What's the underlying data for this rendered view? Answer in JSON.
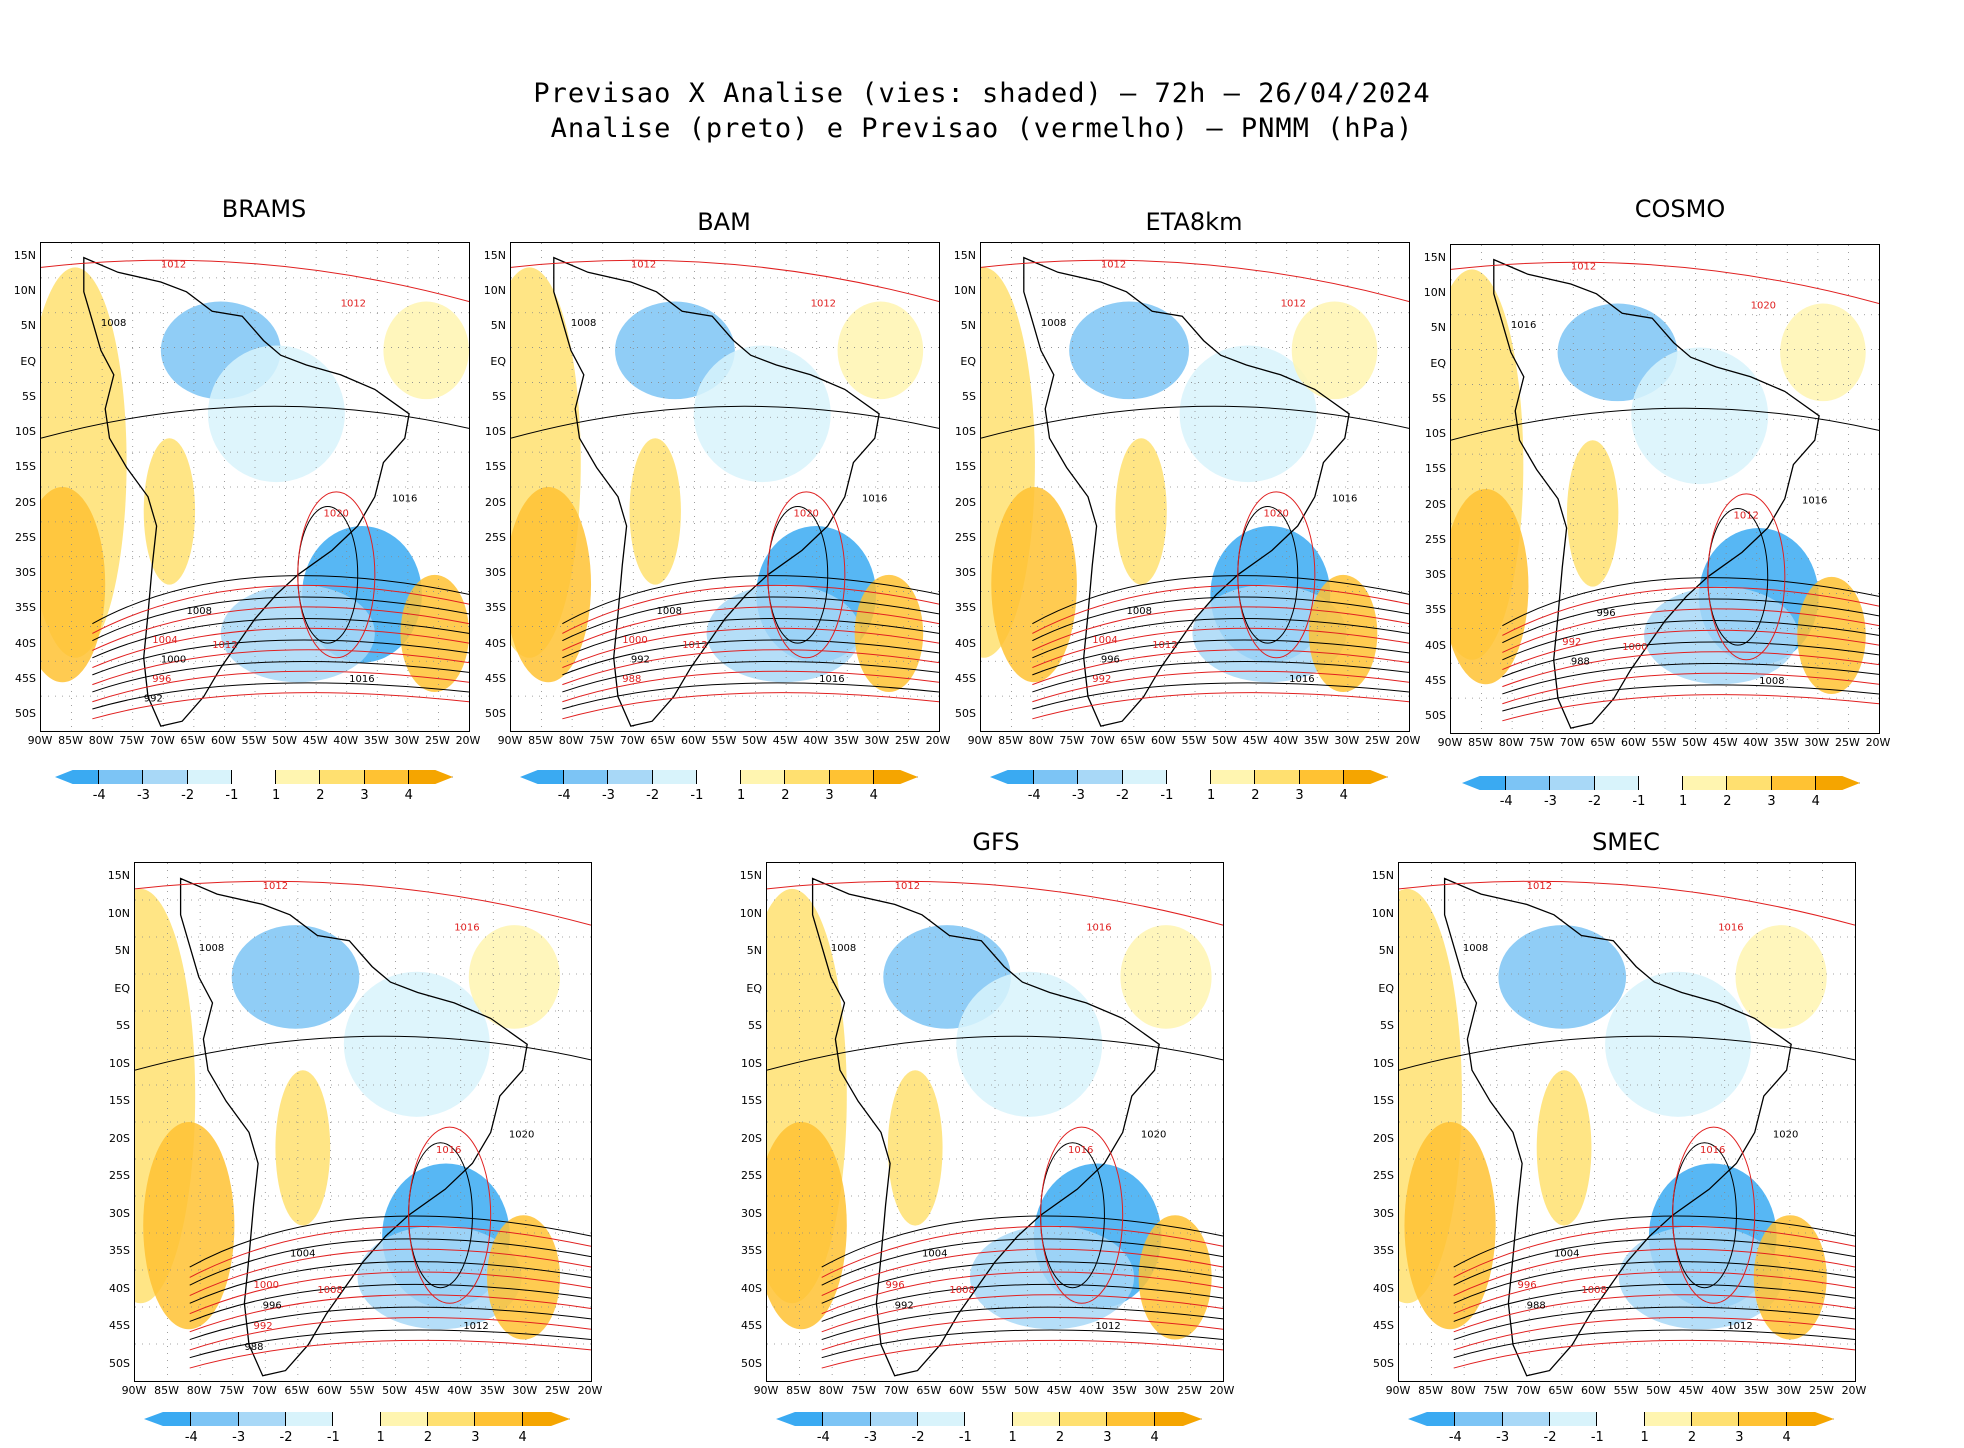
{
  "title": {
    "line1": "Previsao X Analise (vies: shaded) – 72h – 26/04/2024",
    "line2": "Analise (preto) e Previsao (vermelho) – PNMM (hPa)"
  },
  "lat_labels": [
    "15N",
    "10N",
    "5N",
    "EQ",
    "5S",
    "10S",
    "15S",
    "20S",
    "25S",
    "30S",
    "35S",
    "40S",
    "45S",
    "50S"
  ],
  "lon_labels": [
    "90W",
    "85W",
    "80W",
    "75W",
    "70W",
    "65W",
    "60W",
    "55W",
    "50W",
    "45W",
    "40W",
    "35W",
    "30W",
    "25W",
    "20W"
  ],
  "colorbar": {
    "labels": [
      "-4",
      "-3",
      "-2",
      "-1",
      "1",
      "2",
      "3",
      "4"
    ],
    "colors": [
      "#3aaaf2",
      "#7cc4f5",
      "#a8d8f7",
      "#d8f3fb",
      "#ffffff",
      "#fff5b0",
      "#ffe070",
      "#ffc233",
      "#f5a500"
    ]
  },
  "colors": {
    "analysis": "#000000",
    "forecast": "#e02020",
    "grid": "#888888"
  },
  "panels": [
    {
      "name": "BRAMS",
      "isobars": [
        "1012",
        "1008",
        "1012",
        "1016",
        "1020",
        "1016",
        "1012",
        "1008",
        "1004",
        "1000",
        "996",
        "992"
      ]
    },
    {
      "name": "BAM",
      "isobars": [
        "1012",
        "1008",
        "1012",
        "1016",
        "1020",
        "1016",
        "1012",
        "1008",
        "1000",
        "992",
        "988"
      ]
    },
    {
      "name": "ETA8km",
      "isobars": [
        "1012",
        "1008",
        "1012",
        "1016",
        "1020",
        "1016",
        "1012",
        "1008",
        "1004",
        "996",
        "992"
      ]
    },
    {
      "name": "COSMO",
      "isobars": [
        "1012",
        "1016",
        "1020",
        "1016",
        "1012",
        "1008",
        "1000",
        "996",
        "992",
        "988"
      ]
    },
    {
      "name": "",
      "isobars": [
        "1012",
        "1008",
        "1016",
        "1020",
        "1016",
        "1012",
        "1008",
        "1004",
        "1000",
        "996",
        "992",
        "988"
      ]
    },
    {
      "name": "GFS",
      "isobars": [
        "1012",
        "1008",
        "1016",
        "1020",
        "1016",
        "1012",
        "1008",
        "1004",
        "996",
        "992"
      ]
    },
    {
      "name": "SMEC",
      "isobars": [
        "1012",
        "1008",
        "1016",
        "1020",
        "1016",
        "1012",
        "1008",
        "1004",
        "996",
        "988"
      ]
    }
  ]
}
